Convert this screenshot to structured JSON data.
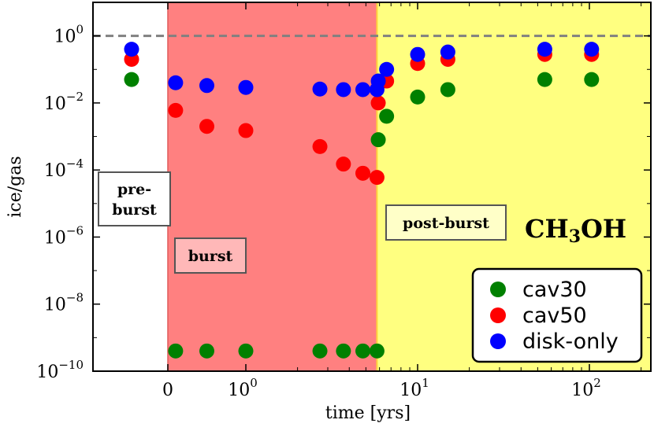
{
  "chart_data": {
    "type": "scatter",
    "xlabel": "time [yrs]",
    "ylabel": "ice/gas",
    "species_label": {
      "base": "CH",
      "sub": "3",
      "tail": "OH"
    },
    "x_scale": "piecewise: linear below 0, symlog above 0",
    "y_scale": "log",
    "ylim": [
      1e-10,
      10
    ],
    "x_ticks": [
      {
        "value": 0,
        "label": "0"
      },
      {
        "value": 1,
        "label": "10",
        "exp": "0"
      },
      {
        "value": 10,
        "label": "10",
        "exp": "1"
      },
      {
        "value": 100,
        "label": "10",
        "exp": "2"
      }
    ],
    "y_ticks": [
      {
        "value": 1,
        "label": "10",
        "exp": "0"
      },
      {
        "value": 0.01,
        "label": "10",
        "exp": "−2"
      },
      {
        "value": 0.0001,
        "label": "10",
        "exp": "−4"
      },
      {
        "value": 1e-06,
        "label": "10",
        "exp": "−6"
      },
      {
        "value": 1e-08,
        "label": "10",
        "exp": "−8"
      },
      {
        "value": 1e-10,
        "label": "10",
        "exp": "−10"
      }
    ],
    "reference_line": {
      "y": 1,
      "style": "dashed",
      "color": "#808080"
    },
    "phases": [
      {
        "label_lines": [
          "pre-",
          "burst"
        ],
        "x_range": [
          "start",
          0
        ],
        "color": "#ffffff"
      },
      {
        "label_lines": [
          "burst"
        ],
        "x_range": [
          0,
          5.8
        ],
        "color": "#ff8080"
      },
      {
        "label_lines": [
          "post-burst"
        ],
        "x_range": [
          5.8,
          "end"
        ],
        "color": "#ffff80"
      }
    ],
    "series": [
      {
        "name": "cav30",
        "color": "#008000",
        "points": [
          {
            "x": "pre-burst",
            "y": 0.05
          },
          {
            "x": 0.1,
            "y": 4e-10
          },
          {
            "x": 0.5,
            "y": 4e-10
          },
          {
            "x": 1.0,
            "y": 4e-10
          },
          {
            "x": 2.7,
            "y": 4e-10
          },
          {
            "x": 3.7,
            "y": 4e-10
          },
          {
            "x": 4.8,
            "y": 4e-10
          },
          {
            "x": 5.8,
            "y": 4e-10
          },
          {
            "x": 5.9,
            "y": 0.0008
          },
          {
            "x": 6.6,
            "y": 0.004
          },
          {
            "x": 10,
            "y": 0.015
          },
          {
            "x": 15,
            "y": 0.025
          },
          {
            "x": 55,
            "y": 0.05
          },
          {
            "x": 103,
            "y": 0.05
          }
        ]
      },
      {
        "name": "cav50",
        "color": "#ff0000",
        "points": [
          {
            "x": "pre-burst",
            "y": 0.2
          },
          {
            "x": 0.1,
            "y": 0.006
          },
          {
            "x": 0.5,
            "y": 0.002
          },
          {
            "x": 1.0,
            "y": 0.0015
          },
          {
            "x": 2.7,
            "y": 0.0005
          },
          {
            "x": 3.7,
            "y": 0.00015
          },
          {
            "x": 4.8,
            "y": 8e-05
          },
          {
            "x": 5.8,
            "y": 6e-05
          },
          {
            "x": 5.9,
            "y": 0.01
          },
          {
            "x": 6.6,
            "y": 0.045
          },
          {
            "x": 10,
            "y": 0.15
          },
          {
            "x": 15,
            "y": 0.2
          },
          {
            "x": 55,
            "y": 0.28
          },
          {
            "x": 103,
            "y": 0.28
          }
        ]
      },
      {
        "name": "disk-only",
        "color": "#0000ff",
        "points": [
          {
            "x": "pre-burst",
            "y": 0.4
          },
          {
            "x": 0.1,
            "y": 0.04
          },
          {
            "x": 0.5,
            "y": 0.033
          },
          {
            "x": 1.0,
            "y": 0.029
          },
          {
            "x": 2.7,
            "y": 0.026
          },
          {
            "x": 3.7,
            "y": 0.025
          },
          {
            "x": 4.8,
            "y": 0.025
          },
          {
            "x": 5.8,
            "y": 0.025
          },
          {
            "x": 5.9,
            "y": 0.045
          },
          {
            "x": 6.6,
            "y": 0.1
          },
          {
            "x": 10,
            "y": 0.28
          },
          {
            "x": 15,
            "y": 0.33
          },
          {
            "x": 55,
            "y": 0.4
          },
          {
            "x": 103,
            "y": 0.4
          }
        ]
      }
    ],
    "legend": {
      "placement": "lower-right",
      "entries": [
        "cav30",
        "cav50",
        "disk-only"
      ]
    }
  }
}
